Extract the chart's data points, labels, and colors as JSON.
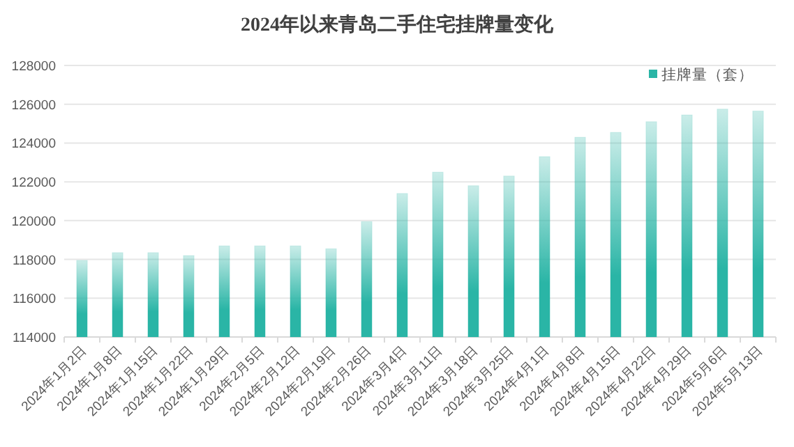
{
  "chart_data": {
    "type": "bar",
    "title": "2024年以来青岛二手住宅挂牌量变化",
    "categories": [
      "2024年1月2日",
      "2024年1月8日",
      "2024年1月15日",
      "2024年1月22日",
      "2024年1月29日",
      "2024年2月5日",
      "2024年2月12日",
      "2024年2月19日",
      "2024年2月26日",
      "2024年3月4日",
      "2024年3月11日",
      "2024年3月18日",
      "2024年3月25日",
      "2024年4月1日",
      "2024年4月8日",
      "2024年4月15日",
      "2024年4月22日",
      "2024年4月29日",
      "2024年5月6日",
      "2024年5月13日"
    ],
    "series": [
      {
        "name": "挂牌量（套）",
        "color": "#2ab5a6",
        "values": [
          117950,
          118350,
          118350,
          118200,
          118700,
          118700,
          118700,
          118550,
          119950,
          121400,
          122500,
          121800,
          122300,
          123300,
          124300,
          124550,
          125100,
          125450,
          125750,
          125650
        ]
      }
    ],
    "ylim": [
      114000,
      128000
    ],
    "yticks": [
      114000,
      116000,
      118000,
      120000,
      122000,
      124000,
      126000,
      128000
    ],
    "grid": "y",
    "legend": "top right"
  }
}
